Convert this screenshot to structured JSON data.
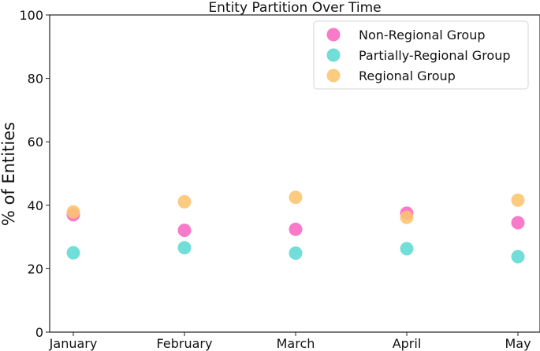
{
  "chart_data": {
    "type": "scatter",
    "title": "Entity Partition Over Time",
    "xlabel": "",
    "ylabel": "% of Entities",
    "categories": [
      "January",
      "February",
      "March",
      "April",
      "May"
    ],
    "ylim": [
      0,
      100
    ],
    "yticks": [
      0,
      20,
      40,
      60,
      80,
      100
    ],
    "grid": false,
    "legend_position": "top-right",
    "series": [
      {
        "name": "Non-Regional Group",
        "color": "#f768c0",
        "values": [
          37.0,
          32.1,
          32.4,
          37.5,
          34.5
        ]
      },
      {
        "name": "Partially-Regional Group",
        "color": "#5fd9d3",
        "values": [
          25.0,
          26.6,
          24.9,
          26.3,
          23.8
        ]
      },
      {
        "name": "Regional Group",
        "color": "#fbc46e",
        "values": [
          37.9,
          41.1,
          42.5,
          36.2,
          41.6
        ]
      }
    ]
  }
}
